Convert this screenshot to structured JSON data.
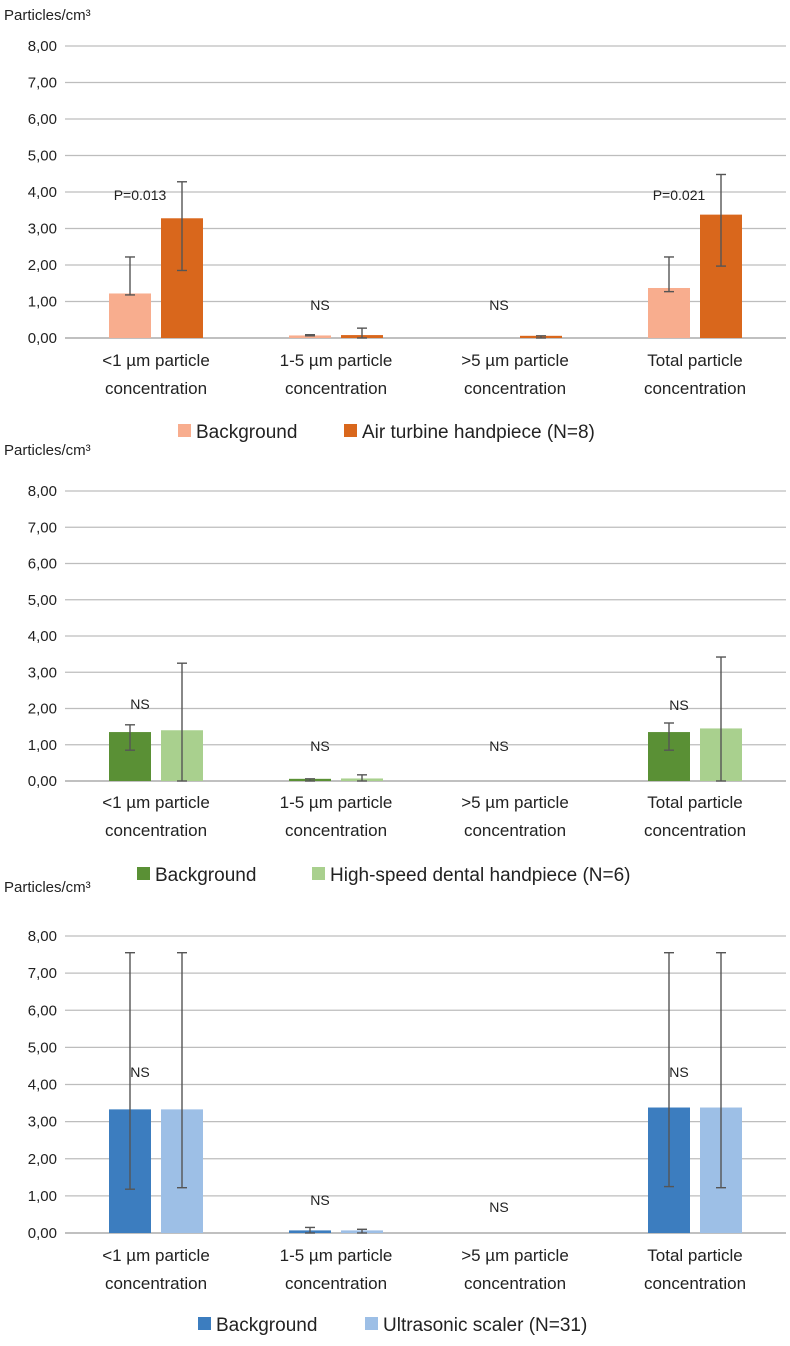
{
  "chart_data": [
    {
      "type": "bar",
      "ylabel": "Particles/cm³",
      "ylim": [
        0,
        8
      ],
      "yticks": [
        "0,00",
        "1,00",
        "2,00",
        "3,00",
        "4,00",
        "5,00",
        "6,00",
        "7,00",
        "8,00"
      ],
      "grid": true,
      "legend_position": "bottom",
      "categories": [
        [
          "<1 µm particle",
          "concentration"
        ],
        [
          "1-5 µm particle",
          "concentration"
        ],
        [
          ">5 µm particle",
          "concentration"
        ],
        [
          "Total particle",
          "concentration"
        ]
      ],
      "series": [
        {
          "name": "Background",
          "color": "#f8ad8e",
          "values": [
            1.22,
            0.07,
            0.0,
            1.37
          ],
          "err_low": [
            1.18,
            0.06,
            0.0,
            1.27
          ],
          "err_high": [
            2.22,
            0.09,
            0.0,
            2.22
          ]
        },
        {
          "name": "Air turbine handpiece (N=8)",
          "color": "#d9671c",
          "values": [
            3.28,
            0.08,
            0.06,
            3.38
          ],
          "err_low": [
            1.85,
            0.0,
            0.0,
            1.97
          ],
          "err_high": [
            4.28,
            0.27,
            0.06,
            4.48
          ]
        }
      ],
      "annotations": [
        "P=0.013",
        "NS",
        "NS",
        "P=0.021"
      ]
    },
    {
      "type": "bar",
      "ylabel": "Particles/cm³",
      "ylim": [
        0,
        8
      ],
      "yticks": [
        "0,00",
        "1,00",
        "2,00",
        "3,00",
        "4,00",
        "5,00",
        "6,00",
        "7,00",
        "8,00"
      ],
      "grid": true,
      "legend_position": "bottom",
      "categories": [
        [
          "<1 µm particle",
          "concentration"
        ],
        [
          "1-5 µm particle",
          "concentration"
        ],
        [
          ">5 µm particle",
          "concentration"
        ],
        [
          "Total particle",
          "concentration"
        ]
      ],
      "series": [
        {
          "name": "Background",
          "color": "#5a9035",
          "values": [
            1.35,
            0.06,
            0.0,
            1.35
          ],
          "err_low": [
            0.85,
            0.0,
            0.0,
            0.85
          ],
          "err_high": [
            1.55,
            0.06,
            0.0,
            1.6
          ]
        },
        {
          "name": "High-speed dental handpiece (N=6)",
          "color": "#a9d08e",
          "values": [
            1.4,
            0.07,
            0.0,
            1.45
          ],
          "err_low": [
            0.0,
            0.0,
            0.0,
            0.0
          ],
          "err_high": [
            3.25,
            0.17,
            0.0,
            3.42
          ]
        }
      ],
      "annotations": [
        "NS",
        "NS",
        "NS",
        "NS"
      ]
    },
    {
      "type": "bar",
      "ylabel": "Particles/cm³",
      "ylim": [
        0,
        8
      ],
      "yticks": [
        "0,00",
        "1,00",
        "2,00",
        "3,00",
        "4,00",
        "5,00",
        "6,00",
        "7,00",
        "8,00"
      ],
      "grid": true,
      "legend_position": "bottom",
      "categories": [
        [
          "<1 µm particle",
          "concentration"
        ],
        [
          "1-5 µm particle",
          "concentration"
        ],
        [
          ">5 µm particle",
          "concentration"
        ],
        [
          "Total particle",
          "concentration"
        ]
      ],
      "series": [
        {
          "name": "Background",
          "color": "#3c7dbf",
          "values": [
            3.33,
            0.07,
            0.0,
            3.38
          ],
          "err_low": [
            1.18,
            0.0,
            0.0,
            1.25
          ],
          "err_high": [
            7.55,
            0.15,
            0.0,
            7.55
          ]
        },
        {
          "name": "Ultrasonic scaler (N=31)",
          "color": "#9dbfe6",
          "values": [
            3.33,
            0.07,
            0.0,
            3.38
          ],
          "err_low": [
            1.22,
            0.0,
            0.0,
            1.22
          ],
          "err_high": [
            7.55,
            0.1,
            0.0,
            7.55
          ]
        }
      ],
      "annotations": [
        "NS",
        "NS",
        "NS",
        "NS"
      ]
    }
  ]
}
